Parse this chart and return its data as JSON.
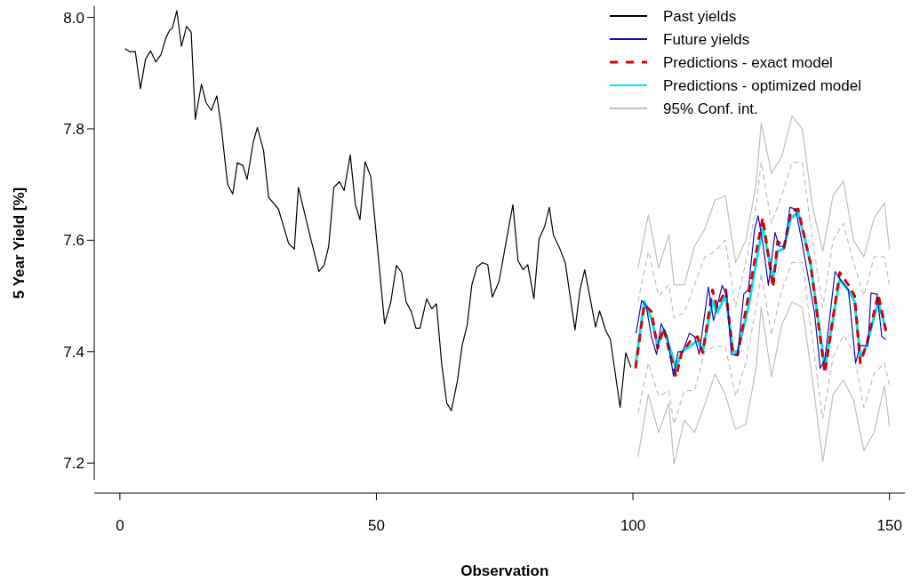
{
  "chart_data": {
    "type": "line",
    "xlabel": "Observation",
    "ylabel": "5 Year Yield [%]",
    "xlim": [
      -5,
      153
    ],
    "ylim": [
      7.17,
      8.02
    ],
    "xticks": [
      0,
      50,
      100,
      150
    ],
    "yticks": [
      {
        "value": 7.2,
        "label": "7.2"
      },
      {
        "value": 7.4,
        "label": "7.4"
      },
      {
        "value": 7.6,
        "label": "7.6"
      },
      {
        "value": 7.8,
        "label": "7.8"
      },
      {
        "value": 8.0,
        "label": "8.0"
      }
    ],
    "grid": false,
    "legend": "top right",
    "series": [
      {
        "name": "Past yields",
        "color": "#000000",
        "line_style": "solid",
        "x": [
          1,
          2,
          3,
          4,
          5,
          6,
          7,
          8,
          9,
          9.7,
          10.2,
          11.1,
          12,
          13,
          13.9,
          14.7,
          15.9,
          16.8,
          17.8,
          18.9,
          19.7,
          21,
          22,
          22.9,
          24,
          24.8,
          26,
          26.8,
          28,
          29,
          30.9,
          32.9,
          34,
          34.8,
          36.9,
          38.8,
          39.8,
          40.7,
          41.7,
          42.8,
          43.7,
          44.9,
          45.9,
          46.8,
          47.8,
          48.9,
          51.6,
          52.8,
          53.9,
          54.9,
          55.8,
          56.8,
          57.7,
          58.5,
          59.8,
          60.8,
          61.7,
          62.7,
          63.7,
          64.6,
          65.8,
          66.7,
          67.7,
          68.6,
          69.6,
          70.7,
          71.7,
          72.6,
          73.9,
          75.3,
          76.6,
          77.6,
          78.6,
          79.5,
          80.7,
          81.7,
          82.8,
          83.7,
          84.5,
          85.7,
          86.8,
          88.7,
          89.7,
          90.6,
          91.8,
          92.7,
          93.5,
          94.7,
          95.6,
          97.5,
          98.6,
          99.6
        ],
        "values": [
          7.944,
          7.938,
          7.939,
          7.872,
          7.925,
          7.94,
          7.92,
          7.933,
          7.964,
          7.977,
          7.98,
          8.012,
          7.948,
          7.984,
          7.973,
          7.817,
          7.88,
          7.847,
          7.833,
          7.859,
          7.808,
          7.7,
          7.683,
          7.739,
          7.734,
          7.709,
          7.776,
          7.802,
          7.761,
          7.677,
          7.656,
          7.594,
          7.584,
          7.695,
          7.614,
          7.544,
          7.555,
          7.589,
          7.695,
          7.705,
          7.689,
          7.753,
          7.664,
          7.637,
          7.741,
          7.714,
          7.45,
          7.489,
          7.555,
          7.542,
          7.489,
          7.472,
          7.442,
          7.442,
          7.495,
          7.477,
          7.486,
          7.38,
          7.308,
          7.294,
          7.348,
          7.411,
          7.448,
          7.52,
          7.552,
          7.56,
          7.556,
          7.498,
          7.526,
          7.598,
          7.664,
          7.563,
          7.547,
          7.556,
          7.495,
          7.602,
          7.625,
          7.659,
          7.609,
          7.586,
          7.56,
          7.439,
          7.512,
          7.547,
          7.489,
          7.444,
          7.473,
          7.438,
          7.422,
          7.3,
          7.398,
          7.372
        ]
      },
      {
        "name": "Future yields",
        "color": "#1010b0",
        "line_style": "solid",
        "x": [
          100.6,
          101.7,
          102.6,
          103.6,
          104.6,
          105.5,
          106.7,
          107.9,
          108.8,
          109.7,
          111,
          112,
          112.9,
          114.7,
          115.7,
          117.4,
          118.3,
          119.2,
          120.4,
          121.6,
          122.5,
          123.7,
          124.4,
          125.4,
          126.4,
          127.7,
          128.5,
          129.6,
          130.6,
          131.7,
          133,
          135.4,
          136.5,
          137.4,
          139.4,
          140.6,
          142,
          143.4,
          144.3,
          145.8,
          146.4,
          147.6,
          148.5,
          149.3
        ],
        "values": [
          7.433,
          7.492,
          7.481,
          7.427,
          7.395,
          7.45,
          7.427,
          7.356,
          7.4,
          7.4,
          7.433,
          7.427,
          7.395,
          7.516,
          7.456,
          7.519,
          7.5,
          7.395,
          7.395,
          7.503,
          7.512,
          7.62,
          7.644,
          7.589,
          7.519,
          7.614,
          7.589,
          7.589,
          7.659,
          7.656,
          7.594,
          7.469,
          7.37,
          7.386,
          7.544,
          7.527,
          7.511,
          7.38,
          7.411,
          7.411,
          7.505,
          7.503,
          7.427,
          7.422
        ]
      },
      {
        "name": "Predictions - exact model",
        "color": "#dd0000",
        "line_style": "dashed",
        "x": [
          100.5,
          102.2,
          103.6,
          104.8,
          106,
          107.4,
          108.4,
          109.5,
          111.2,
          112.6,
          113.6,
          115.5,
          116.4,
          118.1,
          119.5,
          120.4,
          122.5,
          124.4,
          125.3,
          127.3,
          128.2,
          129.4,
          130.8,
          132.2,
          134.6,
          137.4,
          140.3,
          142,
          143.2,
          144.3,
          145.5,
          147.8,
          149.3
        ],
        "values": [
          7.37,
          7.484,
          7.472,
          7.406,
          7.442,
          7.39,
          7.355,
          7.398,
          7.419,
          7.427,
          7.398,
          7.511,
          7.48,
          7.511,
          7.395,
          7.394,
          7.5,
          7.598,
          7.64,
          7.516,
          7.598,
          7.586,
          7.652,
          7.656,
          7.558,
          7.362,
          7.542,
          7.52,
          7.5,
          7.38,
          7.411,
          7.503,
          7.437
        ]
      },
      {
        "name": "Predictions - optimized model",
        "color": "#00e5ee",
        "line_style": "solid",
        "x": [
          100.5,
          102.2,
          103.6,
          104.8,
          106,
          107.4,
          108.4,
          109.5,
          111.2,
          112.6,
          113.6,
          115.5,
          116.4,
          118.1,
          119.5,
          120.4,
          122.5,
          124.4,
          125.3,
          127.3,
          128.2,
          129.4,
          130.8,
          132.2,
          134.6,
          137.4,
          140.3,
          142,
          143.2,
          144.3,
          145.5,
          147.8,
          149.3
        ],
        "values": [
          7.375,
          7.49,
          7.46,
          7.41,
          7.44,
          7.4,
          7.37,
          7.4,
          7.41,
          7.42,
          7.4,
          7.49,
          7.47,
          7.5,
          7.4,
          7.4,
          7.48,
          7.58,
          7.625,
          7.53,
          7.58,
          7.585,
          7.64,
          7.65,
          7.56,
          7.37,
          7.53,
          7.51,
          7.49,
          7.39,
          7.41,
          7.49,
          7.44
        ]
      },
      {
        "name": "95% Conf. int.",
        "color": "#bebebe",
        "line_style": "solid",
        "x": [
          101,
          103,
          105,
          107,
          108,
          110,
          112,
          114,
          116,
          118,
          120,
          122,
          124,
          125,
          127,
          129,
          131,
          133,
          135,
          137,
          139,
          141,
          143,
          145,
          147,
          149,
          150
        ],
        "values": [
          7.551,
          7.646,
          7.55,
          7.61,
          7.52,
          7.52,
          7.589,
          7.62,
          7.672,
          7.68,
          7.56,
          7.6,
          7.7,
          7.81,
          7.72,
          7.75,
          7.823,
          7.8,
          7.66,
          7.58,
          7.68,
          7.706,
          7.6,
          7.57,
          7.64,
          7.667,
          7.583
        ]
      },
      {
        "color": "#bebebe",
        "line_style": "dashed",
        "x": [
          101,
          103,
          105,
          107,
          108,
          110,
          112,
          114,
          116,
          118,
          120,
          122,
          124,
          125,
          127,
          129,
          131,
          133,
          135,
          137,
          139,
          141,
          143,
          145,
          147,
          149,
          150
        ],
        "values": [
          7.49,
          7.58,
          7.5,
          7.52,
          7.46,
          7.47,
          7.52,
          7.57,
          7.58,
          7.6,
          7.48,
          7.56,
          7.66,
          7.74,
          7.63,
          7.68,
          7.74,
          7.74,
          7.6,
          7.48,
          7.6,
          7.63,
          7.56,
          7.5,
          7.57,
          7.57,
          7.52
        ]
      },
      {
        "color": "#bebebe",
        "line_style": "dashed",
        "x": [
          101,
          103,
          105,
          107,
          108,
          110,
          112,
          114,
          116,
          118,
          120,
          122,
          124,
          125,
          127,
          129,
          131,
          133,
          135,
          137,
          139,
          141,
          143,
          145,
          147,
          149,
          150
        ],
        "values": [
          7.29,
          7.38,
          7.32,
          7.33,
          7.27,
          7.33,
          7.33,
          7.4,
          7.41,
          7.41,
          7.32,
          7.38,
          7.48,
          7.54,
          7.43,
          7.51,
          7.56,
          7.56,
          7.42,
          7.28,
          7.39,
          7.43,
          7.4,
          7.3,
          7.36,
          7.38,
          7.34
        ]
      },
      {
        "color": "#bebebe",
        "line_style": "solid",
        "x": [
          101,
          103,
          105,
          107,
          108,
          110,
          112,
          114,
          116,
          118,
          120,
          122,
          124,
          125,
          127,
          129,
          131,
          133,
          135,
          137,
          139,
          141,
          143,
          145,
          147,
          149,
          150
        ],
        "values": [
          7.211,
          7.323,
          7.255,
          7.308,
          7.198,
          7.277,
          7.255,
          7.305,
          7.36,
          7.323,
          7.261,
          7.27,
          7.37,
          7.48,
          7.355,
          7.448,
          7.489,
          7.48,
          7.349,
          7.203,
          7.323,
          7.349,
          7.313,
          7.222,
          7.255,
          7.339,
          7.266
        ]
      }
    ]
  }
}
